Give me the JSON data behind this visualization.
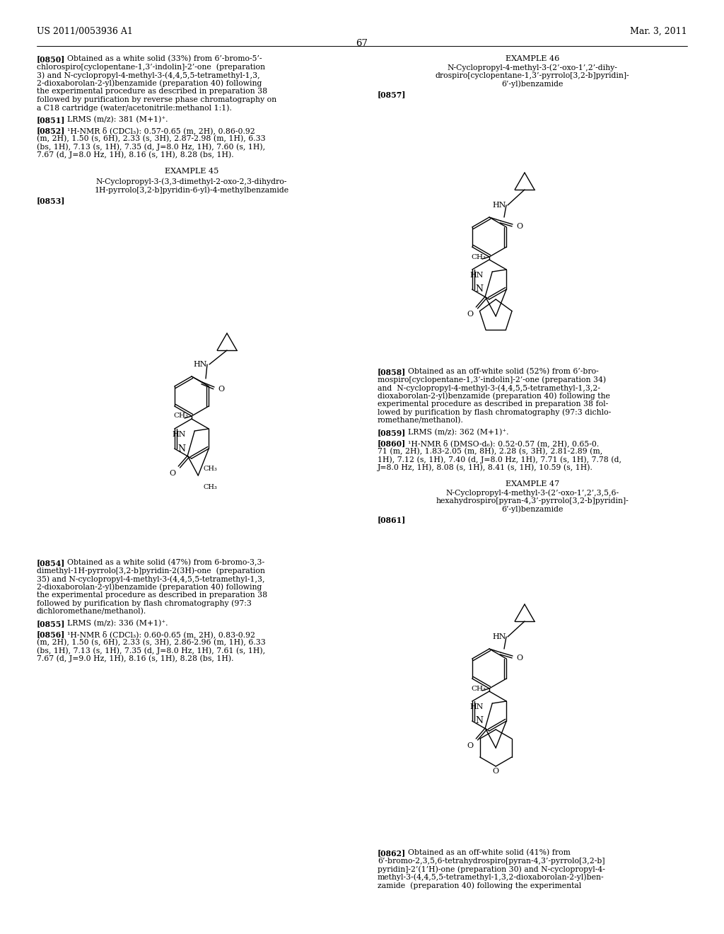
{
  "background": "#ffffff",
  "header_left": "US 2011/0053936 A1",
  "header_right": "Mar. 3, 2011",
  "page_number": "67"
}
